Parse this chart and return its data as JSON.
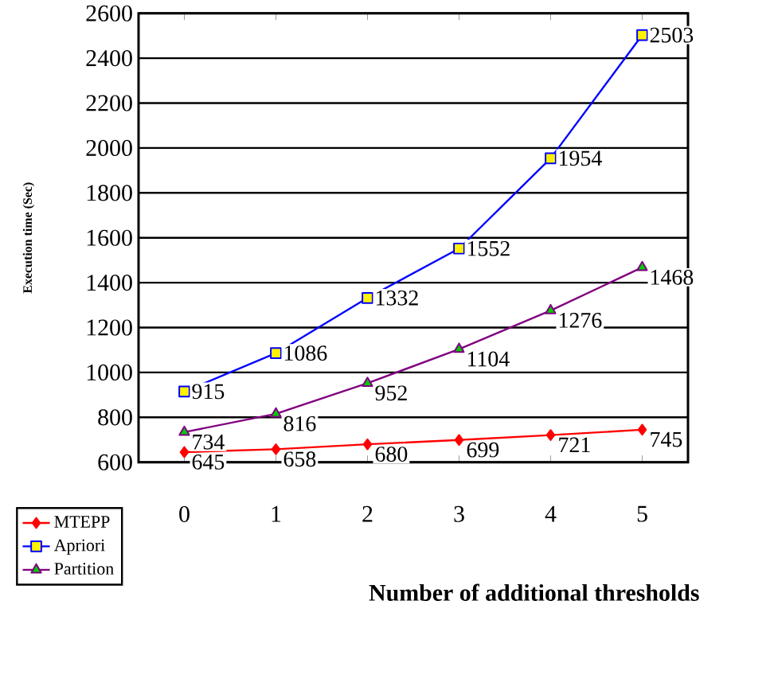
{
  "chart_data": {
    "type": "line",
    "ylabel": "Execution time (Sec)",
    "xlabel": "Number of additional thresholds",
    "categories": [
      "0",
      "1",
      "2",
      "3",
      "4",
      "5"
    ],
    "series": [
      {
        "name": "MTEPP",
        "color": "#ff0000",
        "marker": "diamond",
        "values": [
          645,
          658,
          680,
          699,
          721,
          745
        ]
      },
      {
        "name": "Apriori",
        "color": "#0000ff",
        "marker": "square",
        "values": [
          915,
          1086,
          1332,
          1552,
          1954,
          2503
        ]
      },
      {
        "name": "Partition",
        "color": "#800080",
        "marker": "triangle",
        "values": [
          734,
          816,
          952,
          1104,
          1276,
          1468
        ]
      }
    ],
    "ylim": [
      600,
      2600
    ],
    "yticks": [
      600,
      800,
      1000,
      1200,
      1400,
      1600,
      1800,
      2000,
      2200,
      2400,
      2600
    ],
    "grid": "y",
    "legend": "bottom left",
    "data_labels": true
  }
}
